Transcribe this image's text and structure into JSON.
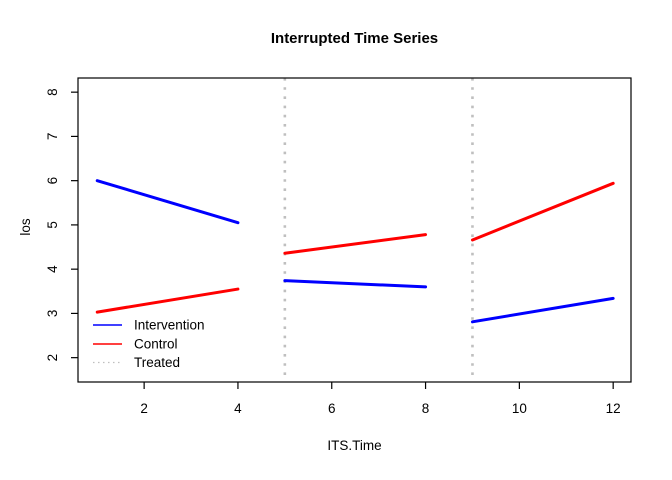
{
  "chart_data": {
    "type": "line",
    "title": "Interrupted Time Series",
    "xlabel": "ITS.Time",
    "ylabel": "los",
    "x_ticks": [
      2,
      4,
      6,
      8,
      10,
      12
    ],
    "y_ticks": [
      2,
      3,
      4,
      5,
      6,
      7,
      8
    ],
    "xlim": [
      0.59,
      12.38
    ],
    "ylim": [
      1.45,
      8.32
    ],
    "grid": false,
    "box": true,
    "line_width": 3,
    "series": [
      {
        "name": "Intervention",
        "color": "#0000FF",
        "style": "solid",
        "segments": [
          [
            [
              1,
              6.0
            ],
            [
              4,
              5.05
            ]
          ],
          [
            [
              5,
              3.74
            ],
            [
              8,
              3.6
            ]
          ],
          [
            [
              9,
              2.81
            ],
            [
              12,
              3.34
            ]
          ]
        ]
      },
      {
        "name": "Control",
        "color": "#FF0000",
        "style": "solid",
        "segments": [
          [
            [
              1,
              3.03
            ],
            [
              4,
              3.55
            ]
          ],
          [
            [
              5,
              4.36
            ],
            [
              8,
              4.78
            ]
          ],
          [
            [
              9,
              4.66
            ],
            [
              12,
              5.94
            ]
          ]
        ]
      }
    ],
    "vlines": {
      "name": "Treated",
      "color": "#BFBFBF",
      "style": "dotted",
      "x": [
        5,
        9
      ]
    },
    "legend": {
      "position": "bottom-left",
      "entries": [
        {
          "label": "Intervention",
          "color": "#0000FF",
          "style": "solid"
        },
        {
          "label": "Control",
          "color": "#FF0000",
          "style": "solid"
        },
        {
          "label": "Treated",
          "color": "#BFBFBF",
          "style": "dotted"
        }
      ]
    }
  }
}
